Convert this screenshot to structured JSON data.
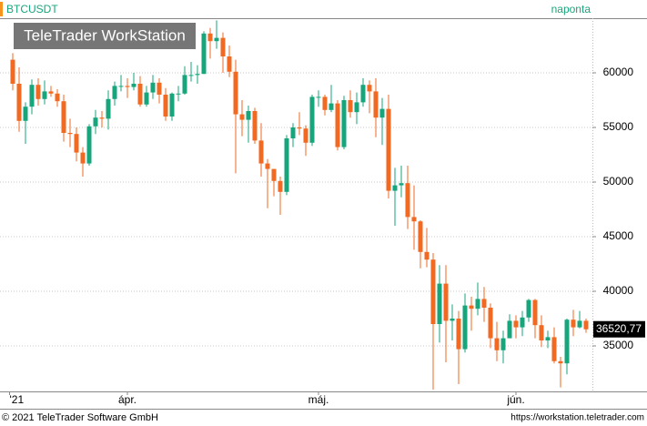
{
  "chart_data": {
    "type": "candlestick",
    "title": "BTCUSDT",
    "subtitle": "naponta",
    "logo": "TeleTrader WorkStation",
    "copyright": "© 2021 TeleTrader Software GmbH",
    "url": "https://workstation.teletrader.com",
    "up_color": "#17a67c",
    "down_color": "#f26a21",
    "grid": true,
    "xlim": [
      -2,
      91
    ],
    "xticks": [
      {
        "value": -0.5,
        "label": "'21"
      },
      {
        "value": 18,
        "label": "ápr."
      },
      {
        "value": 48,
        "label": "máj."
      },
      {
        "value": 79,
        "label": "jún."
      }
    ],
    "ylim": [
      30833,
      65000
    ],
    "yticks": [
      35000,
      40000,
      45000,
      50000,
      55000,
      60000
    ],
    "last": {
      "value": 36520.77,
      "label": "36520,77"
    },
    "open": [
      61200,
      59000,
      55600,
      56900,
      58900,
      57600,
      58300,
      58100,
      57400,
      54500,
      54400,
      52700,
      51700,
      55100,
      55900,
      55800,
      57600,
      58800,
      58800,
      58700,
      59000,
      57100,
      58200,
      59100,
      58000,
      56000,
      58100,
      58100,
      59800,
      59800,
      59900,
      63600,
      62900,
      63200,
      61500,
      60100,
      56200,
      55700,
      56500,
      53800,
      51700,
      51200,
      50100,
      49100,
      54000,
      55000,
      54900,
      53600,
      57800,
      57800,
      56600,
      57200,
      53200,
      57500,
      56400,
      57300,
      58900,
      58300,
      55900,
      56700,
      49200,
      49700,
      49900,
      46800,
      46400,
      43600,
      42900,
      37000,
      40700,
      37300,
      37500,
      34700,
      38700,
      38400,
      39300,
      38500,
      35700,
      34600,
      35700,
      37300,
      36700,
      37600,
      39200,
      36900,
      35500,
      35800,
      33600,
      33400,
      37400,
      36700,
      37300
    ],
    "high": [
      61800,
      60500,
      57300,
      59400,
      59500,
      59300,
      58800,
      58500,
      58000,
      55800,
      55000,
      53200,
      55300,
      56600,
      56500,
      58400,
      59200,
      59800,
      59500,
      60000,
      59700,
      58800,
      59800,
      59500,
      58600,
      58200,
      58800,
      60600,
      61000,
      60700,
      63800,
      64100,
      64800,
      63700,
      62500,
      61200,
      57500,
      57000,
      56800,
      55400,
      52100,
      51200,
      50500,
      54300,
      55400,
      56400,
      55200,
      58000,
      58400,
      58000,
      58900,
      57500,
      57900,
      58400,
      58200,
      59500,
      59300,
      59500,
      57700,
      58000,
      51300,
      51500,
      51500,
      49700,
      46500,
      45800,
      43500,
      42400,
      42400,
      38800,
      38200,
      39800,
      39500,
      40800,
      40400,
      38900,
      37200,
      36400,
      37900,
      37800,
      38200,
      39300,
      39300,
      37800,
      36400,
      36700,
      34000,
      37500,
      38300,
      38200,
      37500
    ],
    "low": [
      58400,
      54600,
      53500,
      56200,
      57000,
      57100,
      57800,
      56900,
      53700,
      53200,
      51900,
      50500,
      51500,
      54400,
      55000,
      54800,
      57000,
      58300,
      57700,
      58400,
      56900,
      56900,
      57600,
      57200,
      55600,
      55600,
      57400,
      58000,
      59200,
      59000,
      59900,
      61300,
      62200,
      60000,
      59600,
      50800,
      54200,
      53600,
      53500,
      50500,
      47600,
      48700,
      47000,
      48800,
      53200,
      54300,
      52400,
      53300,
      56900,
      56100,
      56400,
      52900,
      53000,
      55900,
      55300,
      56900,
      56300,
      54100,
      53400,
      48500,
      46000,
      48600,
      45700,
      43800,
      42100,
      42200,
      31000,
      35300,
      33500,
      35500,
      31500,
      34400,
      36400,
      37800,
      37200,
      34800,
      33600,
      33400,
      35700,
      35700,
      35900,
      37200,
      35700,
      34900,
      34800,
      33400,
      31200,
      32400,
      35900,
      36600,
      36200
    ],
    "close": [
      59000,
      55600,
      56900,
      58900,
      57600,
      58300,
      58100,
      57400,
      54500,
      54400,
      52700,
      51700,
      55100,
      55900,
      55800,
      57600,
      58800,
      58800,
      58700,
      59000,
      57100,
      58200,
      59100,
      58000,
      56000,
      58100,
      58100,
      59800,
      59800,
      59900,
      63600,
      62900,
      63200,
      61500,
      60100,
      56200,
      55700,
      56500,
      53800,
      51700,
      51200,
      50100,
      49100,
      54000,
      55000,
      54900,
      53600,
      57800,
      57800,
      56600,
      57200,
      53200,
      57500,
      56400,
      57300,
      58900,
      58300,
      55900,
      56700,
      49200,
      49700,
      49900,
      46800,
      46400,
      43600,
      42900,
      37000,
      40700,
      37300,
      37500,
      34700,
      38700,
      38400,
      39300,
      38500,
      35700,
      34600,
      35700,
      37300,
      36700,
      37600,
      39200,
      36900,
      35500,
      35800,
      33600,
      33400,
      37400,
      36700,
      37300,
      36520.77
    ]
  }
}
